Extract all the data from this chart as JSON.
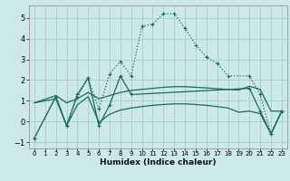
{
  "xlabel": "Humidex (Indice chaleur)",
  "bg_color": "#cce8e8",
  "grid_color": "#aacccc",
  "line_color": "#1a6b5a",
  "xlim": [
    -0.5,
    23.5
  ],
  "ylim": [
    -1.3,
    5.6
  ],
  "xticks": [
    0,
    1,
    2,
    3,
    4,
    5,
    6,
    7,
    8,
    9,
    10,
    11,
    12,
    13,
    14,
    15,
    16,
    17,
    18,
    19,
    20,
    21,
    22,
    23
  ],
  "yticks": [
    -1,
    0,
    1,
    2,
    3,
    4,
    5
  ],
  "series_dotted": {
    "x": [
      0,
      2,
      3,
      4,
      5,
      6,
      7,
      8,
      9,
      10,
      11,
      12,
      13,
      14,
      15,
      16,
      17,
      18,
      20,
      21,
      22,
      23
    ],
    "y": [
      -0.8,
      1.2,
      -0.2,
      1.2,
      2.1,
      0.6,
      2.3,
      2.9,
      2.2,
      4.6,
      4.7,
      5.2,
      5.2,
      4.5,
      3.7,
      3.1,
      2.8,
      2.2,
      2.2,
      1.3,
      -0.6,
      0.5
    ]
  },
  "series_solid_marker": {
    "x": [
      0,
      2,
      3,
      4,
      5,
      6,
      7,
      8,
      9,
      20,
      21,
      22,
      23
    ],
    "y": [
      -0.8,
      1.2,
      -0.2,
      1.3,
      2.1,
      -0.2,
      0.8,
      2.2,
      1.3,
      1.6,
      0.5,
      -0.6,
      0.5
    ]
  },
  "series_flat_upper": {
    "x": [
      0,
      2,
      3,
      4,
      5,
      6,
      7,
      8,
      9,
      10,
      11,
      12,
      13,
      14,
      15,
      16,
      17,
      18,
      19,
      20,
      21,
      22,
      23
    ],
    "y": [
      0.9,
      1.25,
      0.9,
      1.1,
      1.4,
      1.1,
      1.25,
      1.4,
      1.5,
      1.55,
      1.6,
      1.65,
      1.68,
      1.68,
      1.65,
      1.62,
      1.58,
      1.55,
      1.52,
      1.7,
      1.55,
      0.5,
      0.5
    ]
  },
  "series_flat_lower": {
    "x": [
      0,
      2,
      3,
      4,
      5,
      6,
      7,
      8,
      9,
      10,
      11,
      12,
      13,
      14,
      15,
      16,
      17,
      18,
      19,
      20,
      21,
      22,
      23
    ],
    "y": [
      0.9,
      1.1,
      -0.2,
      0.8,
      1.2,
      -0.05,
      0.35,
      0.55,
      0.65,
      0.72,
      0.78,
      0.82,
      0.85,
      0.85,
      0.82,
      0.78,
      0.72,
      0.65,
      0.45,
      0.5,
      0.38,
      -0.6,
      0.5
    ]
  }
}
